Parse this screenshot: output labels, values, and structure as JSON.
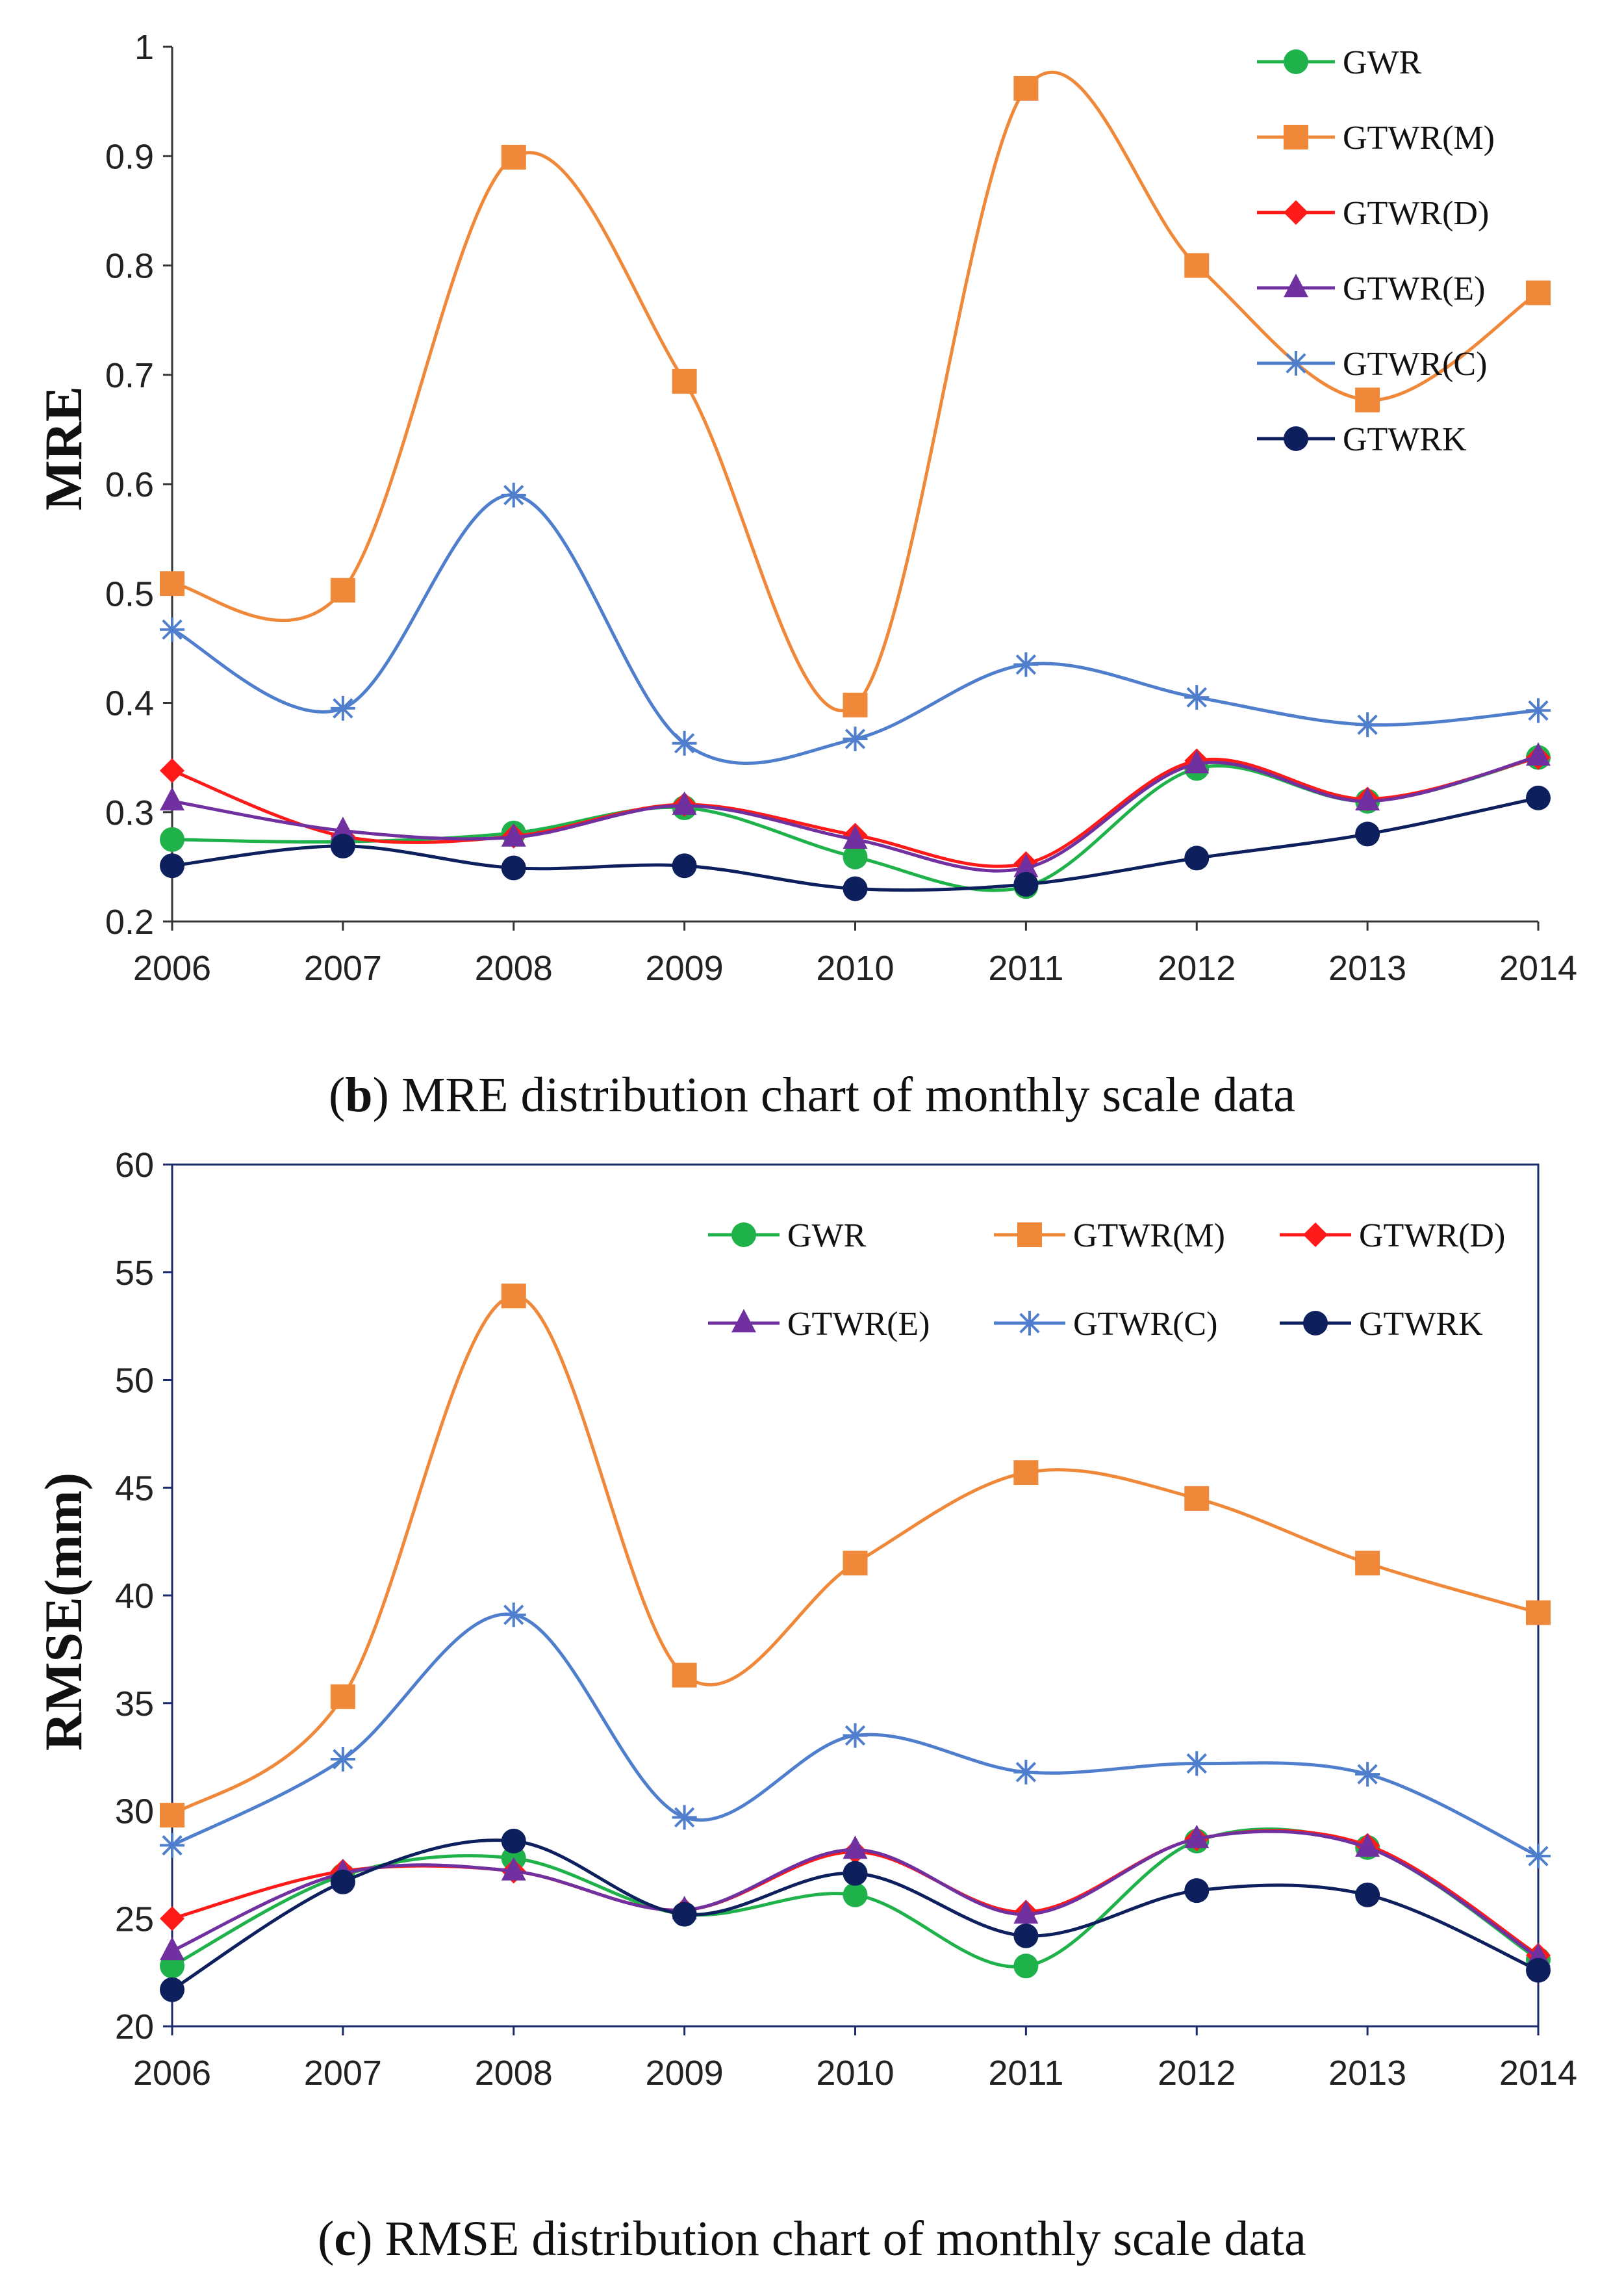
{
  "colors": {
    "GWR": "#1fb24a",
    "GTWR(M)": "#f0883a",
    "GTWR(D)": "#ff1a1a",
    "GTWR(E)": "#7030a0",
    "GTWR(C)": "#4f7fcc",
    "GTWRK": "#0d1f5c"
  },
  "markers": {
    "GWR": "circle",
    "GTWR(M)": "square",
    "GTWR(D)": "diamond",
    "GTWR(E)": "triangle",
    "GTWR(C)": "asterisk",
    "GTWRK": "circle"
  },
  "chart_data": [
    {
      "type": "line",
      "id": "mre",
      "caption_prefix": "(",
      "caption_letter": "b",
      "caption_text": ") MRE distribution chart of monthly scale data",
      "ylabel": "MRE",
      "x": [
        "2006",
        "2007",
        "2008",
        "2009",
        "2010",
        "2011",
        "2012",
        "2013",
        "2014"
      ],
      "ylim": [
        0.2,
        1.0
      ],
      "yticks": [
        "0.2",
        "0.3",
        "0.4",
        "0.5",
        "0.6",
        "0.7",
        "0.8",
        "0.9",
        "1"
      ],
      "legend_position": "top-right",
      "series": [
        {
          "name": "GWR",
          "values": [
            0.275,
            0.273,
            0.281,
            0.304,
            0.259,
            0.232,
            0.34,
            0.31,
            0.35
          ]
        },
        {
          "name": "GTWR(M)",
          "values": [
            0.509,
            0.503,
            0.899,
            0.694,
            0.398,
            0.962,
            0.8,
            0.677,
            0.775
          ]
        },
        {
          "name": "GTWR(D)",
          "values": [
            0.338,
            0.278,
            0.278,
            0.307,
            0.279,
            0.253,
            0.347,
            0.312,
            0.35
          ]
        },
        {
          "name": "GTWR(E)",
          "values": [
            0.31,
            0.283,
            0.277,
            0.306,
            0.275,
            0.249,
            0.344,
            0.31,
            0.351
          ]
        },
        {
          "name": "GTWR(C)",
          "values": [
            0.467,
            0.395,
            0.59,
            0.363,
            0.367,
            0.435,
            0.405,
            0.38,
            0.393
          ]
        },
        {
          "name": "GTWRK",
          "values": [
            0.251,
            0.269,
            0.249,
            0.251,
            0.23,
            0.234,
            0.258,
            0.28,
            0.313
          ]
        }
      ]
    },
    {
      "type": "line",
      "id": "rmse",
      "caption_prefix": "(",
      "caption_letter": "c",
      "caption_text": ") RMSE distribution chart of monthly scale data",
      "ylabel": "RMSE(mm)",
      "x": [
        "2006",
        "2007",
        "2008",
        "2009",
        "2010",
        "2011",
        "2012",
        "2013",
        "2014"
      ],
      "ylim": [
        20,
        60
      ],
      "yticks": [
        "20",
        "25",
        "30",
        "35",
        "40",
        "45",
        "50",
        "55",
        "60"
      ],
      "legend_position": "top-right",
      "series": [
        {
          "name": "GWR",
          "values": [
            22.8,
            27.0,
            27.8,
            25.2,
            26.1,
            22.8,
            28.6,
            28.3,
            23.1
          ]
        },
        {
          "name": "GTWR(M)",
          "values": [
            29.8,
            35.3,
            53.9,
            36.3,
            41.5,
            45.7,
            44.5,
            41.5,
            39.2
          ]
        },
        {
          "name": "GTWR(D)",
          "values": [
            25.0,
            27.2,
            27.2,
            25.4,
            28.1,
            25.3,
            28.7,
            28.4,
            23.3
          ]
        },
        {
          "name": "GTWR(E)",
          "values": [
            23.5,
            27.1,
            27.2,
            25.4,
            28.2,
            25.2,
            28.7,
            28.3,
            23.2
          ]
        },
        {
          "name": "GTWR(C)",
          "values": [
            28.4,
            32.4,
            39.1,
            29.7,
            33.5,
            31.8,
            32.2,
            31.7,
            27.9
          ]
        },
        {
          "name": "GTWRK",
          "values": [
            21.7,
            26.7,
            28.6,
            25.2,
            27.1,
            24.2,
            26.3,
            26.1,
            22.6
          ]
        }
      ]
    }
  ]
}
